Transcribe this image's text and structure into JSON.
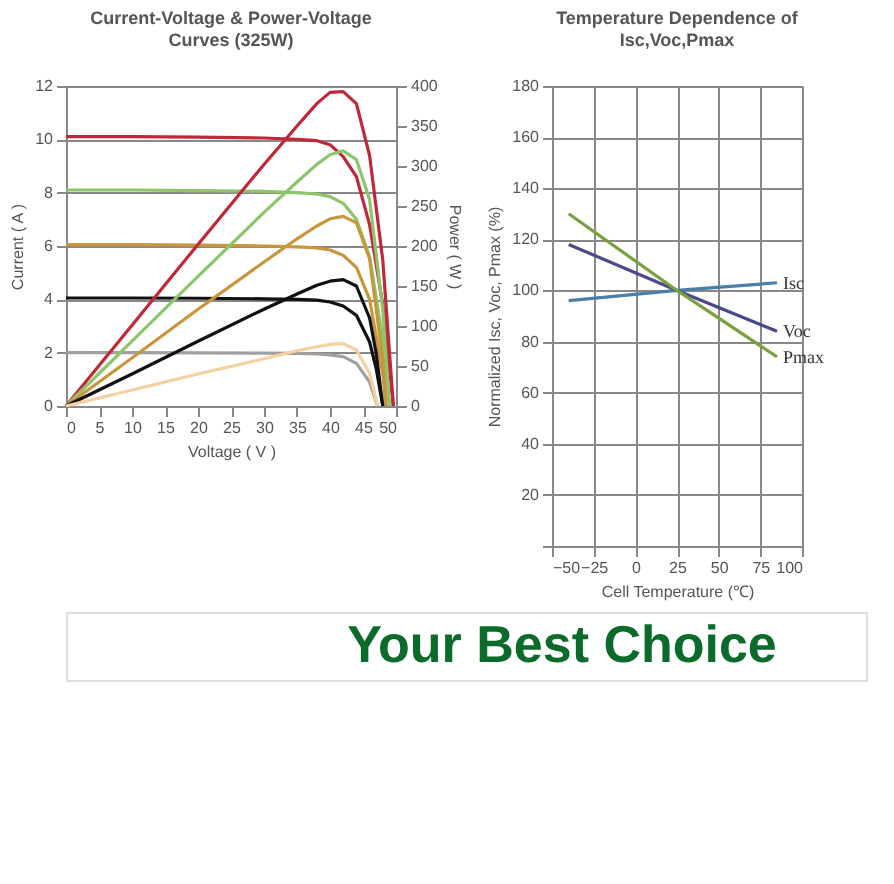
{
  "chart_data": [
    {
      "type": "line",
      "title": "Current-Voltage & Power-Voltage Curves (325W)",
      "xlabel": "Voltage ( V )",
      "ylabel": "Current ( A )",
      "y2label": "Power ( W )",
      "xlim": [
        0,
        50
      ],
      "xticks": [
        0,
        5,
        10,
        15,
        20,
        25,
        30,
        35,
        40,
        45,
        50
      ],
      "ylim": [
        0,
        12
      ],
      "yticks": [
        0,
        2,
        4,
        6,
        8,
        10,
        12
      ],
      "y2lim": [
        0,
        400
      ],
      "y2ticks": [
        0,
        50,
        100,
        150,
        200,
        250,
        300,
        350,
        400
      ],
      "grid": "y",
      "series": [
        {
          "color": "#c0283a",
          "x": [
            0,
            10,
            20,
            30,
            35,
            38,
            40,
            42,
            44,
            46,
            48,
            49.6
          ],
          "values": [
            10.1,
            10.1,
            10.08,
            10.05,
            10.0,
            9.95,
            9.8,
            9.35,
            8.6,
            6.8,
            3.8,
            0
          ]
        },
        {
          "color": "#8cc56a",
          "x": [
            0,
            10,
            20,
            30,
            35,
            38,
            40,
            42,
            44,
            46,
            48,
            49
          ],
          "values": [
            8.1,
            8.1,
            8.08,
            8.05,
            8.0,
            7.95,
            7.85,
            7.6,
            7.0,
            5.6,
            2.5,
            0
          ]
        },
        {
          "color": "#c8963c",
          "x": [
            0,
            10,
            20,
            30,
            35,
            38,
            40,
            42,
            44,
            46,
            48,
            48.5
          ],
          "values": [
            6.05,
            6.05,
            6.03,
            6.0,
            5.97,
            5.93,
            5.85,
            5.65,
            5.2,
            4.0,
            1.2,
            0
          ]
        },
        {
          "color": "#111111",
          "x": [
            0,
            10,
            20,
            30,
            35,
            38,
            40,
            42,
            44,
            46,
            47,
            48
          ],
          "values": [
            4.05,
            4.05,
            4.04,
            4.02,
            4.0,
            3.97,
            3.9,
            3.75,
            3.4,
            2.4,
            1.4,
            0
          ]
        },
        {
          "color": "#a0a0a0",
          "x": [
            0,
            10,
            20,
            30,
            35,
            38,
            40,
            42,
            44,
            46,
            47.2
          ],
          "values": [
            2.0,
            2.0,
            1.99,
            1.98,
            1.97,
            1.95,
            1.92,
            1.85,
            1.6,
            0.9,
            0
          ]
        },
        {
          "color": "#c0283a",
          "axis": "y2",
          "x": [
            0,
            10,
            20,
            30,
            35,
            38,
            40,
            42,
            44,
            46,
            48,
            49.6
          ],
          "values": [
            0,
            101,
            202,
            302,
            350,
            378,
            392,
            393,
            378,
            313,
            182,
            0
          ]
        },
        {
          "color": "#8cc56a",
          "axis": "y2",
          "x": [
            0,
            10,
            20,
            30,
            35,
            38,
            40,
            42,
            44,
            46,
            48,
            49
          ],
          "values": [
            0,
            81,
            162,
            242,
            280,
            302,
            314,
            319,
            308,
            258,
            120,
            0
          ]
        },
        {
          "color": "#c8963c",
          "axis": "y2",
          "x": [
            0,
            10,
            20,
            30,
            35,
            38,
            40,
            42,
            44,
            46,
            48,
            48.5
          ],
          "values": [
            0,
            60,
            121,
            180,
            209,
            225,
            234,
            237,
            229,
            184,
            58,
            0
          ]
        },
        {
          "color": "#111111",
          "axis": "y2",
          "x": [
            0,
            10,
            20,
            30,
            35,
            38,
            40,
            42,
            44,
            46,
            47,
            48
          ],
          "values": [
            0,
            40,
            81,
            121,
            140,
            151,
            156,
            158,
            150,
            110,
            66,
            0
          ]
        },
        {
          "color": "#f5d0a0",
          "axis": "y2",
          "x": [
            0,
            10,
            20,
            30,
            35,
            38,
            40,
            42,
            44,
            46,
            47.2
          ],
          "values": [
            0,
            20,
            40,
            59,
            69,
            74,
            77,
            78,
            70,
            41,
            0
          ]
        }
      ]
    },
    {
      "type": "line",
      "title": "Temperature Dependence of Isc,Voc,Pmax",
      "xlabel": "Cell Temperature (℃)",
      "ylabel": "Normalized Isc, Voc, Pmax (%)",
      "xlim": [
        -50,
        100
      ],
      "xticks": [
        -50,
        -25,
        0,
        25,
        50,
        75,
        100
      ],
      "ylim": [
        0,
        180
      ],
      "yticks": [
        {
          "value": 0,
          "label": null
        },
        20,
        40,
        60,
        80,
        100,
        120,
        140,
        160,
        180
      ],
      "grid": true,
      "series": [
        {
          "name": "Isc",
          "color": "#4a7fa8",
          "x": [
            -40,
            25,
            85
          ],
          "values": [
            96,
            100,
            103
          ]
        },
        {
          "name": "Voc",
          "color": "#4a4a8a",
          "x": [
            -40,
            25,
            85
          ],
          "values": [
            118,
            100,
            84
          ]
        },
        {
          "name": "Pmax",
          "color": "#7aa040",
          "x": [
            -40,
            25,
            85
          ],
          "values": [
            130,
            100,
            74
          ]
        }
      ]
    },
    {
      "type": "other",
      "annotations": [
        "Your Best Choice"
      ]
    }
  ]
}
